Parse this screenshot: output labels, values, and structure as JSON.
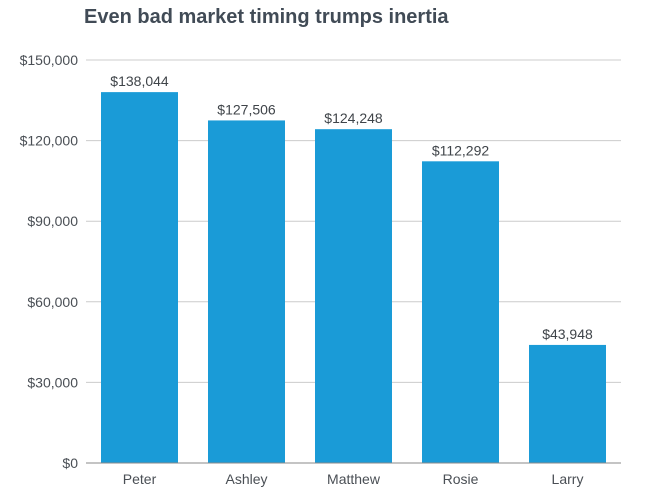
{
  "chart_data": {
    "type": "bar",
    "title": "Even bad market timing trumps inertia",
    "xlabel": "",
    "ylabel": "",
    "categories": [
      "Peter",
      "Ashley",
      "Matthew",
      "Rosie",
      "Larry"
    ],
    "values": [
      138044,
      127506,
      124248,
      112292,
      43948
    ],
    "data_labels": [
      "$138,044",
      "$127,506",
      "$124,248",
      "$112,292",
      "$43,948"
    ],
    "ylim": [
      0,
      150000
    ],
    "yticks": [
      0,
      30000,
      60000,
      90000,
      120000,
      150000
    ],
    "ytick_labels": [
      "$0",
      "$30,000",
      "$60,000",
      "$90,000",
      "$120,000",
      "$150,000"
    ],
    "grid": true,
    "legend": "none",
    "colors": {
      "bar": "#1a9bd7",
      "grid": "#cccccc",
      "axis": "#8a8a8a",
      "title": "#414b56",
      "text": "#4a4f55"
    }
  }
}
